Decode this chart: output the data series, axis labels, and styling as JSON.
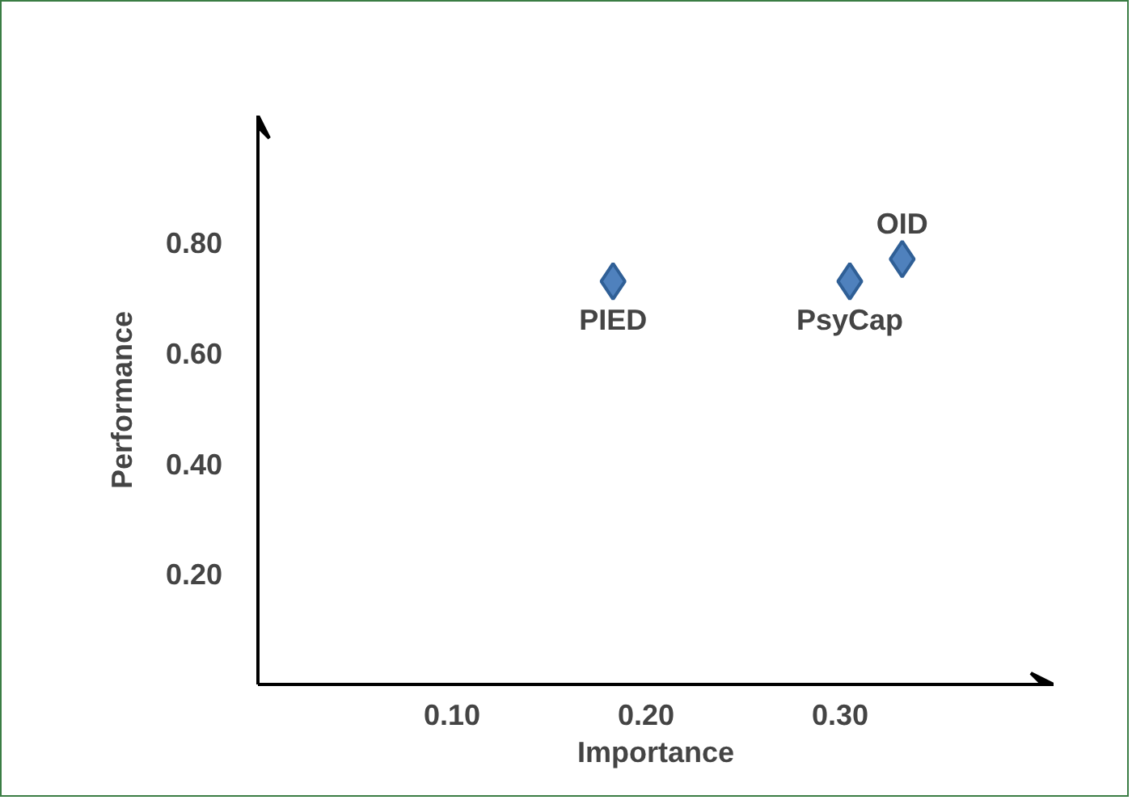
{
  "chart_data": {
    "type": "scatter",
    "xlabel": "Importance",
    "ylabel": "Performance",
    "x": [
      0.183,
      0.305,
      0.332
    ],
    "series": [
      {
        "color": "#4f81bd",
        "values": [
          0.73,
          0.73,
          0.77
        ]
      }
    ],
    "marker": "diamond",
    "grid": false,
    "xlim": [
      0,
      0.41
    ],
    "ylim": [
      0,
      1.03
    ],
    "xticks": [
      {
        "value": 0.1,
        "label": "0.10"
      },
      {
        "value": 0.2,
        "label": "0.20"
      },
      {
        "value": 0.3,
        "label": "0.30"
      }
    ],
    "yticks": [
      {
        "value": 0.2,
        "label": "0.20"
      },
      {
        "value": 0.4,
        "label": "0.40"
      },
      {
        "value": 0.6,
        "label": "0.60"
      },
      {
        "value": 0.8,
        "label": "0.80"
      }
    ],
    "annotations": [
      {
        "text": "PIED",
        "x": 0.183,
        "y": 0.73
      },
      {
        "text": "PsyCap",
        "x": 0.305,
        "y": 0.73
      },
      {
        "text": "OID",
        "x": 0.332,
        "y": 0.77
      }
    ]
  }
}
